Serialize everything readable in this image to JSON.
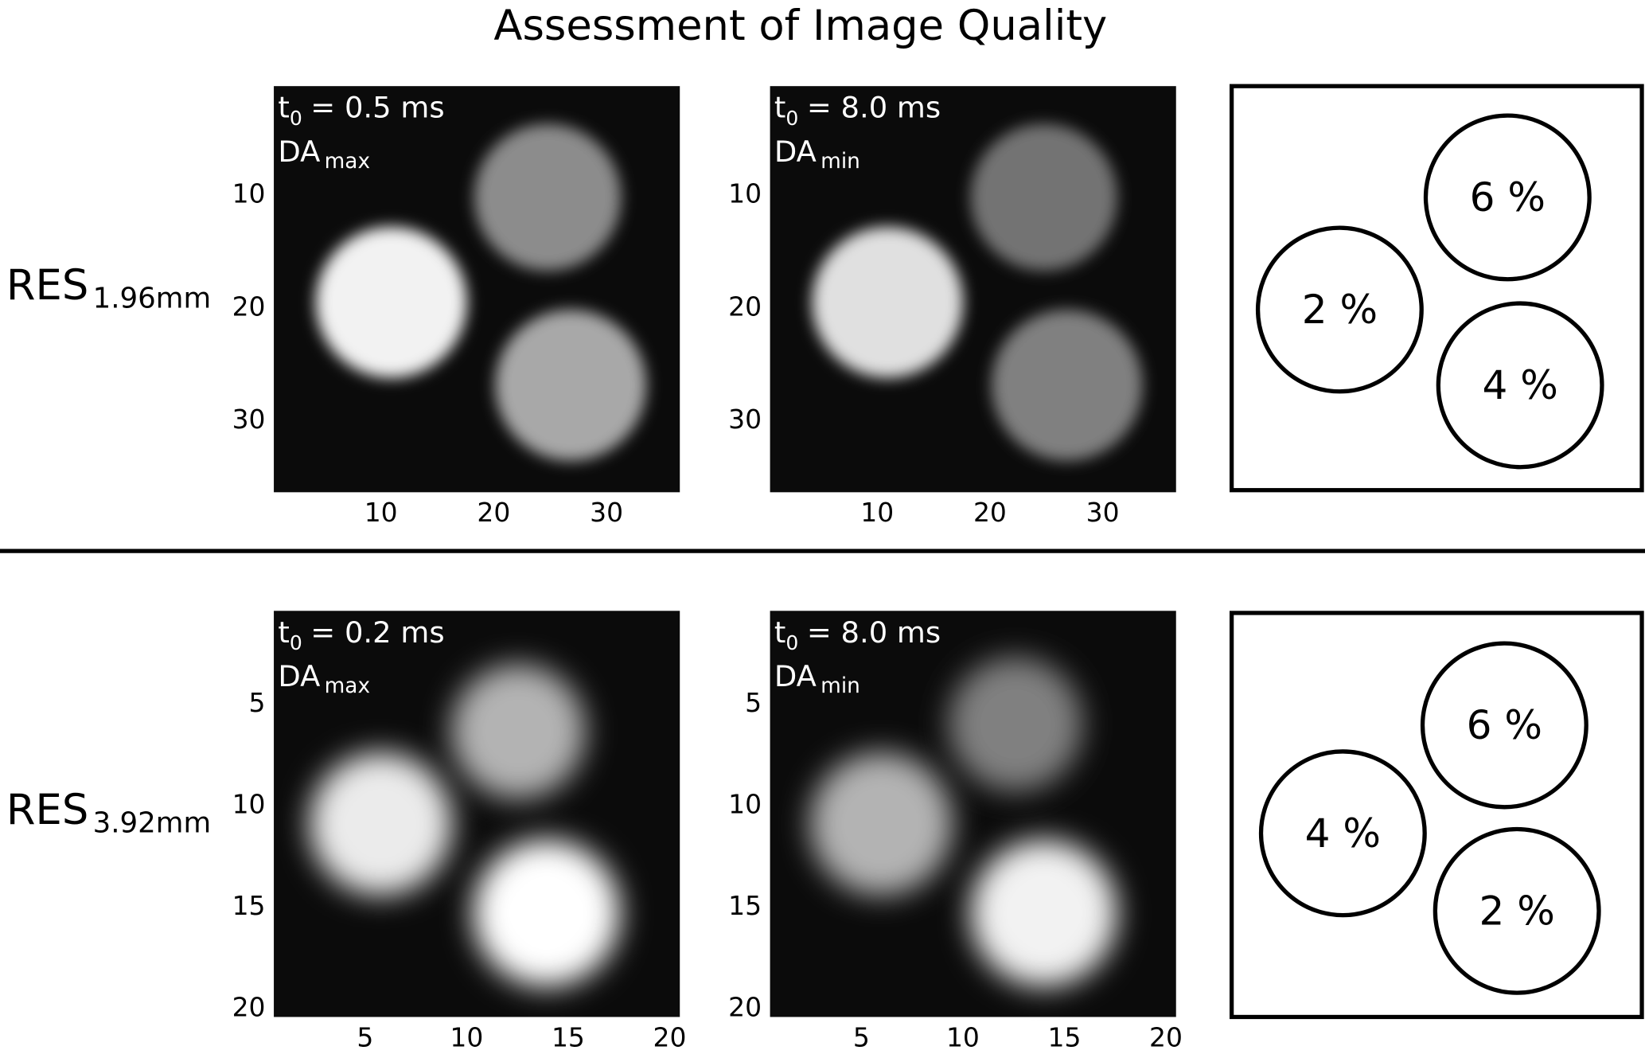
{
  "title": "Assessment of Image Quality",
  "rows": [
    {
      "label": "RES",
      "label_sub": "1.96mm",
      "panels": [
        {
          "time_symbol": "t",
          "time_sub": "0",
          "time_text": "= 0.5 ms",
          "mode": "DA",
          "mode_sub": "max"
        },
        {
          "time_symbol": "t",
          "time_sub": "0",
          "time_text": "= 8.0 ms",
          "mode": "DA",
          "mode_sub": "min"
        }
      ],
      "xlim": [
        0.5,
        36.5
      ],
      "ylim": [
        0.5,
        36.5
      ],
      "xticks": [
        10,
        20,
        30
      ],
      "yticks": [
        10,
        20,
        30
      ],
      "phantom": [
        "6 %",
        "2 %",
        "4 %"
      ]
    },
    {
      "label": "RES",
      "label_sub": "3.92mm",
      "panels": [
        {
          "time_symbol": "t",
          "time_sub": "0",
          "time_text": "= 0.2 ms",
          "mode": "DA",
          "mode_sub": "max"
        },
        {
          "time_symbol": "t",
          "time_sub": "0",
          "time_text": "= 8.0 ms",
          "mode": "DA",
          "mode_sub": "min"
        }
      ],
      "xlim": [
        0.5,
        20.5
      ],
      "ylim": [
        0.5,
        20.5
      ],
      "xticks": [
        5,
        10,
        15,
        20
      ],
      "yticks": [
        5,
        10,
        15,
        20
      ],
      "phantom": [
        "6 %",
        "4 %",
        "2 %"
      ]
    }
  ]
}
